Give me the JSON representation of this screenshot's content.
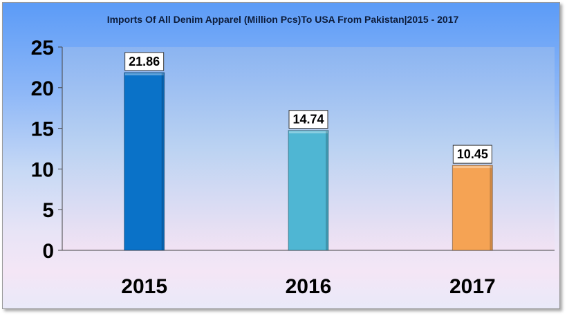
{
  "chart_data": {
    "type": "bar",
    "title": "Imports Of All Denim Apparel (Million Pcs)To USA From Pakistan|2015 - 2017",
    "categories": [
      "2015",
      "2016",
      "2017"
    ],
    "values": [
      21.86,
      14.74,
      10.45
    ],
    "data_labels": [
      "21.86",
      "14.74",
      "10.45"
    ],
    "bar_colors": [
      "#0a72c8",
      "#4fb6d3",
      "#f5a354"
    ],
    "yticks": [
      "0",
      "5",
      "10",
      "15",
      "20",
      "25"
    ],
    "ylim": [
      0,
      25
    ],
    "xlabel": "",
    "ylabel": "",
    "grid": false,
    "legend": "none"
  }
}
